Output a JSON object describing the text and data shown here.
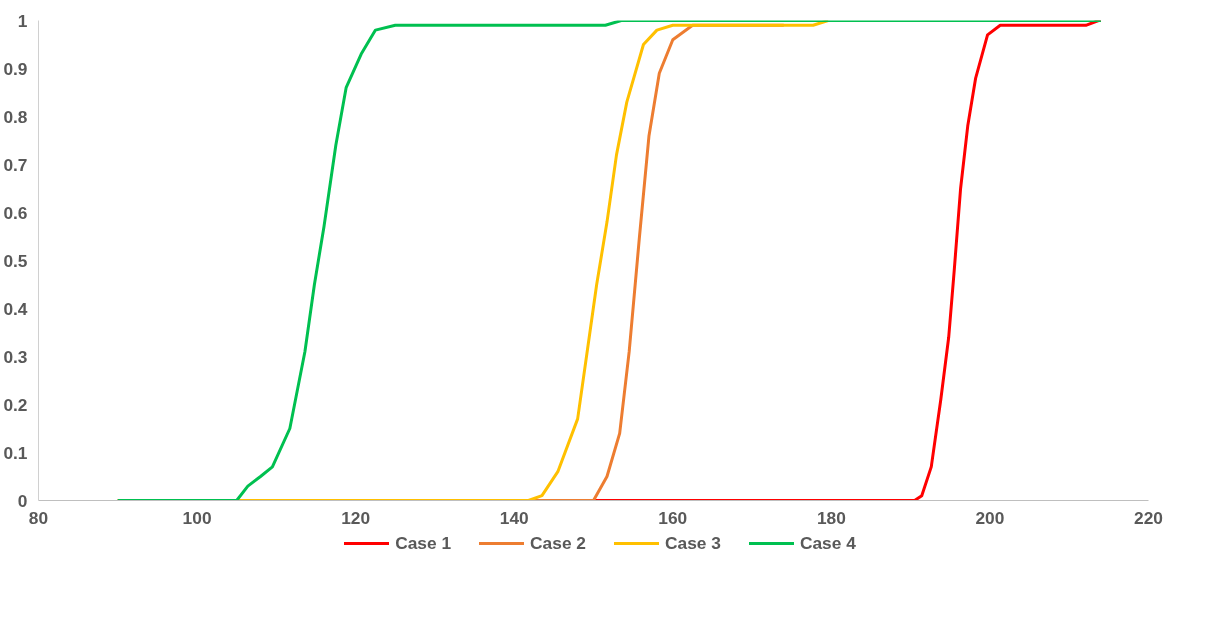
{
  "chart_data": {
    "type": "line",
    "xlim": [
      80,
      220
    ],
    "xticks": [
      80,
      100,
      120,
      140,
      160,
      180,
      200,
      220
    ],
    "ylim": [
      0,
      1
    ],
    "yticks": [
      0,
      0.1,
      0.2,
      0.3,
      0.4,
      0.5,
      0.6,
      0.7,
      0.8,
      0.9,
      1
    ],
    "grid": false,
    "legend": "bottom",
    "marker": "none",
    "line_style": "solid",
    "series": [
      {
        "name": "Case 1",
        "color": "#ff0000",
        "x": [
          90,
          150,
          189,
          190.5,
          191.4,
          192.6,
          193.8,
          194.8,
          195.5,
          196.3,
          197.2,
          198.2,
          199.7,
          201.3,
          203,
          212.1,
          213.7,
          214
        ],
        "values": [
          0,
          0,
          0,
          0,
          0.01,
          0.07,
          0.21,
          0.34,
          0.48,
          0.65,
          0.78,
          0.88,
          0.97,
          0.99,
          0.99,
          0.99,
          1,
          1
        ]
      },
      {
        "name": "Case 2",
        "color": "#ed7d31",
        "x": [
          90,
          150,
          151.7,
          153.3,
          154.5,
          155.8,
          157,
          158.3,
          160,
          162.5,
          174
        ],
        "values": [
          0,
          0,
          0.05,
          0.14,
          0.31,
          0.55,
          0.76,
          0.89,
          0.96,
          0.99,
          0.99
        ]
      },
      {
        "name": "Case 3",
        "color": "#ffc000",
        "x": [
          90,
          141.8,
          143.5,
          145.5,
          148,
          149.2,
          150.4,
          151.7,
          152.9,
          154.2,
          156.3,
          158,
          160,
          177.7,
          179.6
        ],
        "values": [
          0,
          0,
          0.01,
          0.06,
          0.17,
          0.31,
          0.45,
          0.58,
          0.72,
          0.83,
          0.95,
          0.98,
          0.99,
          0.99,
          1
        ]
      },
      {
        "name": "Case 4",
        "color": "#00c050",
        "x": [
          90,
          105,
          106.4,
          108,
          109.5,
          111.7,
          113.6,
          114.8,
          116,
          117.5,
          118.8,
          120.7,
          122.5,
          125,
          128,
          150,
          151.5,
          153.5,
          214
        ],
        "values": [
          0,
          0,
          0.03,
          0.05,
          0.07,
          0.15,
          0.31,
          0.45,
          0.57,
          0.74,
          0.86,
          0.93,
          0.98,
          0.99,
          0.99,
          0.99,
          0.99,
          1,
          1
        ]
      }
    ]
  }
}
